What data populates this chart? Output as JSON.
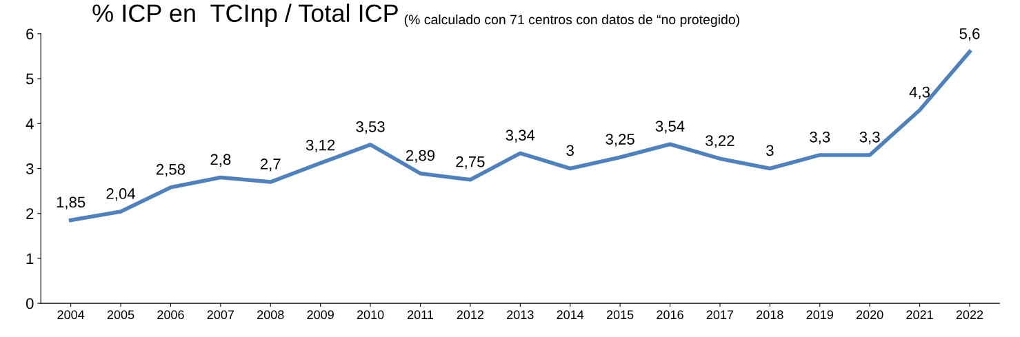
{
  "chart_data": {
    "type": "line",
    "title": "% ICP en  TCInp / Total ICP",
    "subtitle": "(% calculado con 71 centros con datos de “no protegido)",
    "categories": [
      "2004",
      "2005",
      "2006",
      "2007",
      "2008",
      "2009",
      "2010",
      "2011",
      "2012",
      "2013",
      "2014",
      "2015",
      "2016",
      "2017",
      "2018",
      "2019",
      "2020",
      "2021",
      "2022"
    ],
    "series": [
      {
        "color": "#4f81bd",
        "values": [
          1.85,
          2.04,
          2.58,
          2.8,
          2.7,
          3.12,
          3.53,
          2.89,
          2.75,
          3.34,
          3,
          3.25,
          3.54,
          3.22,
          3,
          3.3,
          3.3,
          4.3,
          5.6
        ],
        "value_labels": [
          "1,85",
          "2,04",
          "2,58",
          "2,8",
          "2,7",
          "3,12",
          "3,53",
          "2,89",
          "2,75",
          "3,34",
          "3",
          "3,25",
          "3,54",
          "3,22",
          "3",
          "3,3",
          "3,3",
          "4,3",
          "5,6"
        ]
      }
    ],
    "ylim": [
      0,
      6
    ],
    "yticks": [
      0,
      1,
      2,
      3,
      4,
      5,
      6
    ],
    "grid": false,
    "legend": false,
    "marker": "none",
    "line_style": "solid"
  }
}
